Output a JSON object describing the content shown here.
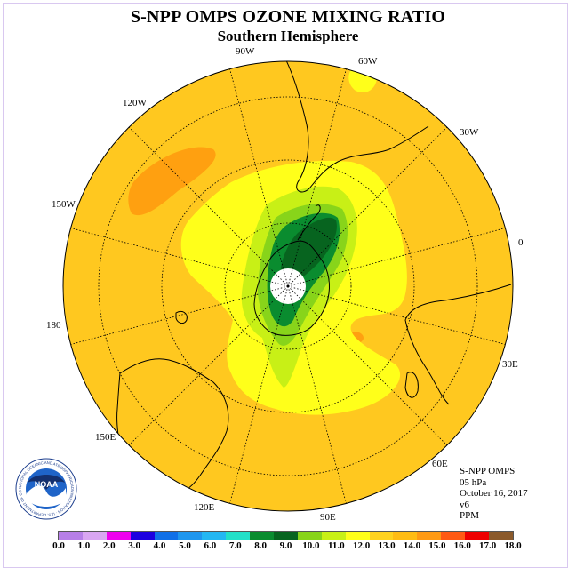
{
  "title": "S-NPP OMPS OZONE MIXING RATIO",
  "subtitle": "Southern Hemisphere",
  "longitude_labels": [
    "90W",
    "60W",
    "30W",
    "0",
    "30E",
    "60E",
    "90E",
    "120E",
    "150E",
    "180",
    "150W",
    "120W"
  ],
  "info": {
    "instrument": "S-NPP OMPS",
    "level": "05 hPa",
    "date": "October 16, 2017",
    "version": "v6",
    "units": "PPM"
  },
  "logo": {
    "text": "NOAA",
    "ring_text": "NATIONAL OCEANIC AND ATMOSPHERIC ADMINISTRATION · U.S. DEPARTMENT OF COMMERCE"
  },
  "colorbar": {
    "tick_labels": [
      "0.0",
      "1.0",
      "2.0",
      "3.0",
      "4.0",
      "5.0",
      "6.0",
      "7.0",
      "8.0",
      "9.0",
      "10.0",
      "11.0",
      "12.0",
      "13.0",
      "14.0",
      "15.0",
      "16.0",
      "17.0",
      "18.0"
    ],
    "colors": [
      "#b77fe8",
      "#d9a6f2",
      "#ee00ee",
      "#1c00e0",
      "#1070e8",
      "#1e96ee",
      "#23b7f2",
      "#22e0c8",
      "#0a8c2f",
      "#07641f",
      "#88d41a",
      "#c8f016",
      "#ffff1a",
      "#ffd21f",
      "#ffbc14",
      "#ff9a14",
      "#ff5a14",
      "#ee0000",
      "#8b5a2b"
    ]
  },
  "colors": {
    "background_field": "#ffc81f",
    "orange_patch": "#ffa010",
    "yellow_band": "#ffff1a",
    "light_green": "#c8f016",
    "mid_green": "#88d41a",
    "green": "#0a8c2f",
    "dark_green": "#07641f",
    "polar_hole": "#ffffff"
  }
}
